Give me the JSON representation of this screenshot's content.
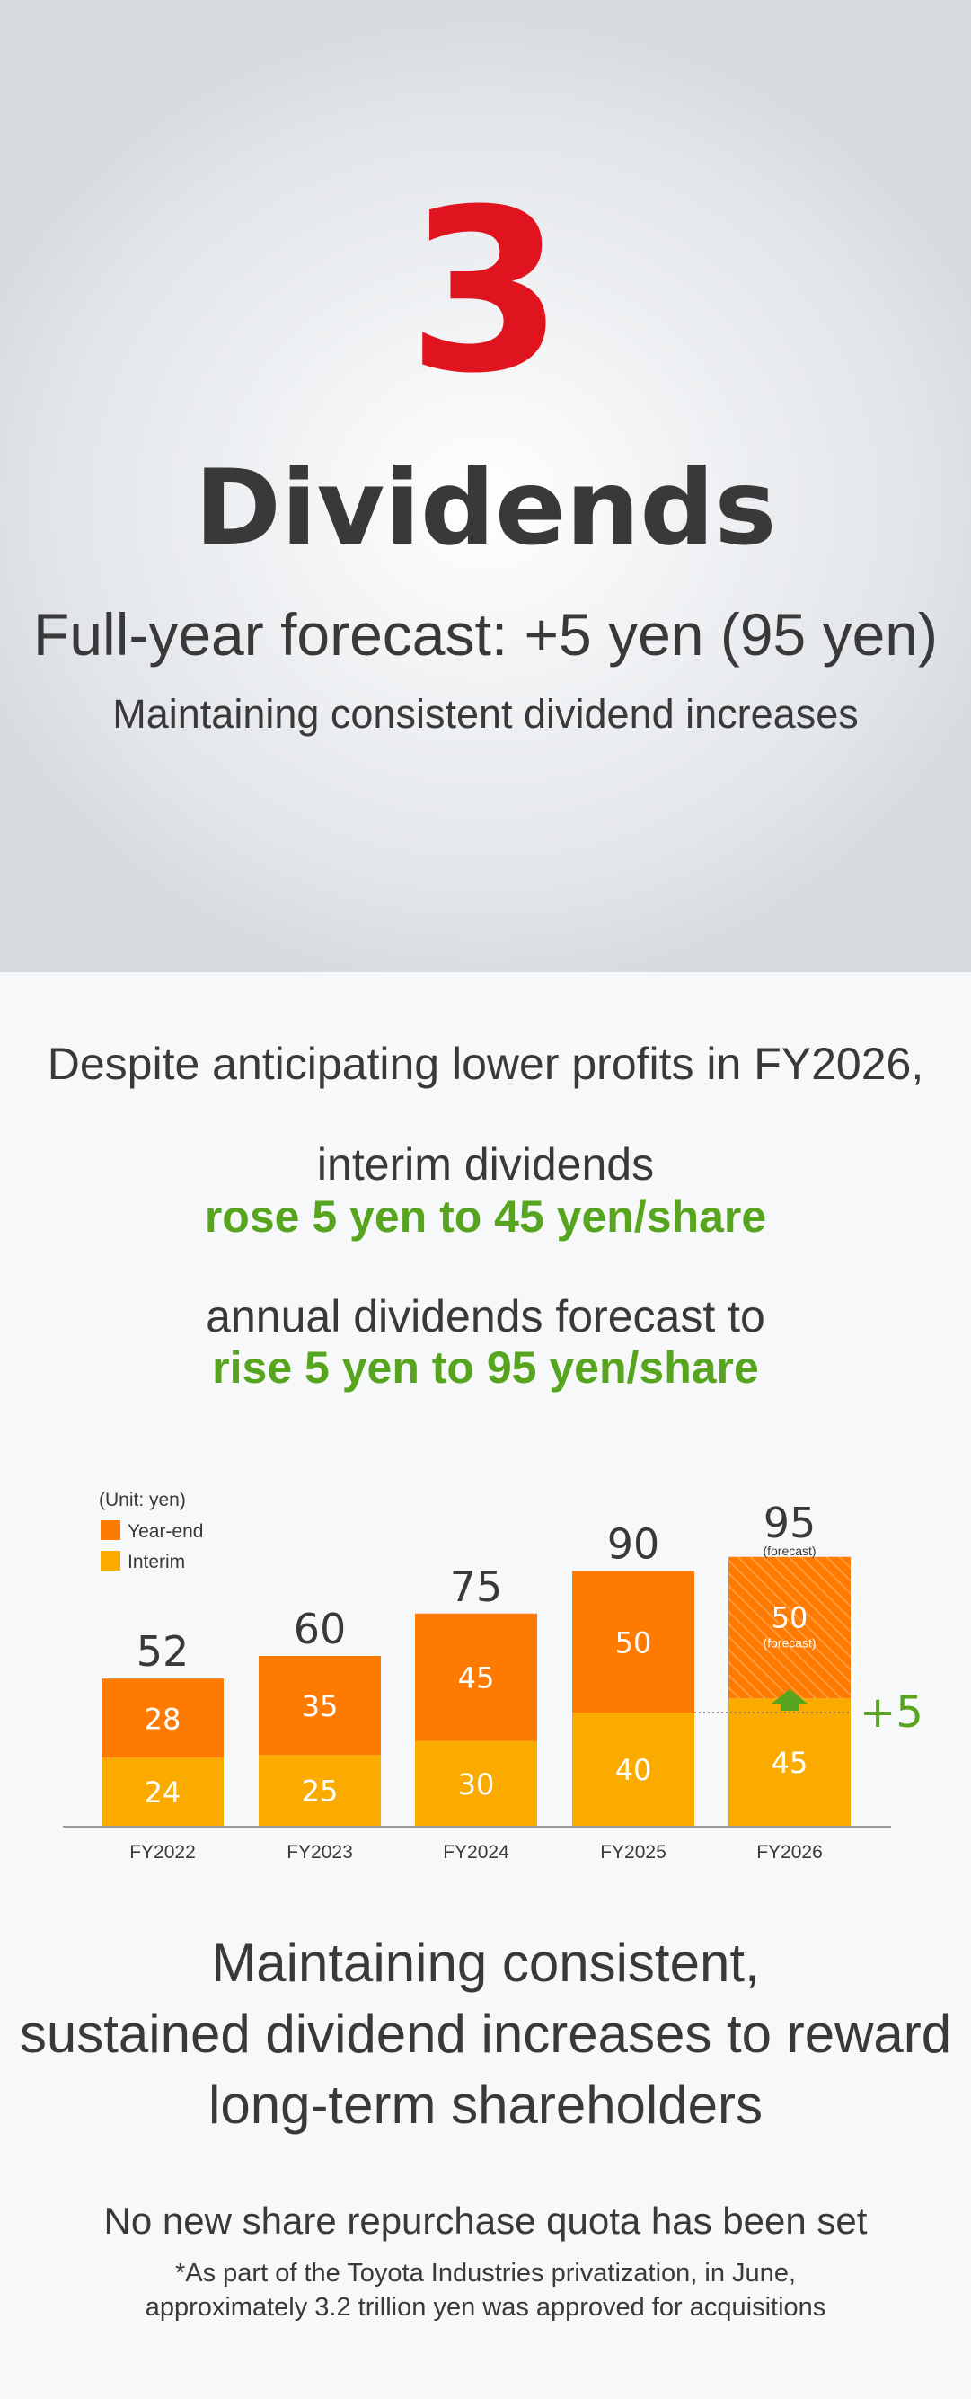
{
  "hero": {
    "number": "3",
    "title": "Dividends",
    "forecast": "Full-year forecast: +5 yen (95 yen)",
    "subtitle": "Maintaining consistent dividend increases"
  },
  "intro": {
    "line1": "Despite anticipating lower profits in FY2026,",
    "line2": "interim dividends",
    "line3": "rose 5 yen to 45 yen/share",
    "line4": "annual dividends forecast to",
    "line5": "rise 5 yen to 95 yen/share"
  },
  "chart_data": {
    "type": "bar",
    "stacked": true,
    "unit_label": "(Unit: yen)",
    "categories": [
      "FY2022",
      "FY2023",
      "FY2024",
      "FY2025",
      "FY2026"
    ],
    "series": [
      {
        "name": "Interim",
        "values": [
          24,
          25,
          30,
          40,
          45
        ],
        "color": "#fbab00"
      },
      {
        "name": "Year-end",
        "values": [
          28,
          35,
          45,
          50,
          50
        ],
        "color": "#ff7a00"
      }
    ],
    "totals": [
      52,
      60,
      75,
      90,
      95
    ],
    "forecast_label": "(forecast)",
    "forecast_category": "FY2026",
    "increase_label": "+5",
    "colors": {
      "increase": "#57a51e",
      "forecast_hatch": "#ff9a3c",
      "axis": "#9a9a9a"
    },
    "legend_position": "top-left",
    "grid": false
  },
  "closing": {
    "line1": "Maintaining consistent,",
    "line2": "sustained dividend increases to reward",
    "line3": "long-term shareholders",
    "note": "No new share repurchase quota has been set",
    "footnote1": "*As part of the Toyota Industries privatization, in June,",
    "footnote2": "approximately 3.2 trillion yen was approved for acquisitions"
  }
}
